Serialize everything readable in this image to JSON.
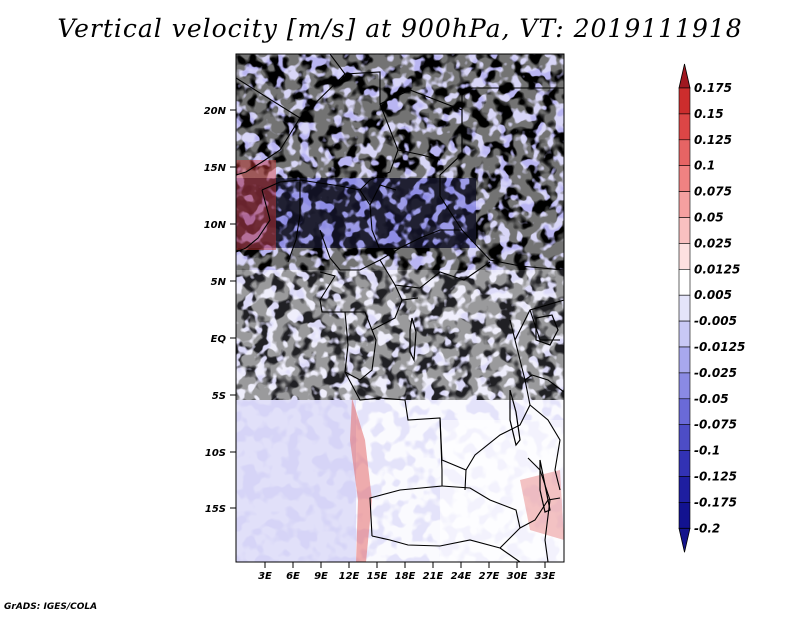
{
  "title": "Vertical velocity [m/s] at 900hPa, VT: 2019111918",
  "credit": "GrADS: IGES/COLA",
  "map": {
    "lat_labels": [
      "20N",
      "15N",
      "10N",
      "5N",
      "EQ",
      "5S",
      "10S",
      "15S"
    ],
    "lon_labels": [
      "3E",
      "6E",
      "9E",
      "12E",
      "15E",
      "18E",
      "21E",
      "24E",
      "27E",
      "30E",
      "33E"
    ]
  },
  "colorbar": {
    "labels": [
      "0.175",
      "0.15",
      "0.125",
      "0.1",
      "0.075",
      "0.05",
      "0.025",
      "0.0125",
      "0.005",
      "-0.005",
      "-0.0125",
      "-0.025",
      "-0.05",
      "-0.075",
      "-0.1",
      "-0.125",
      "-0.175",
      "-0.2"
    ],
    "colors": [
      "#b41e23",
      "#cc2d2d",
      "#dc4646",
      "#e66464",
      "#f08282",
      "#f5a0a0",
      "#f9c0c0",
      "#fde0e0",
      "#ffffff",
      "#e4e4fa",
      "#c8c8f5",
      "#a8a8ee",
      "#8a8ae4",
      "#6a6ad8",
      "#4d4dc6",
      "#3232b4",
      "#1e1ea0",
      "#121290"
    ],
    "top_arrow_color": "#a01820",
    "bottom_arrow_color": "#14148c"
  }
}
